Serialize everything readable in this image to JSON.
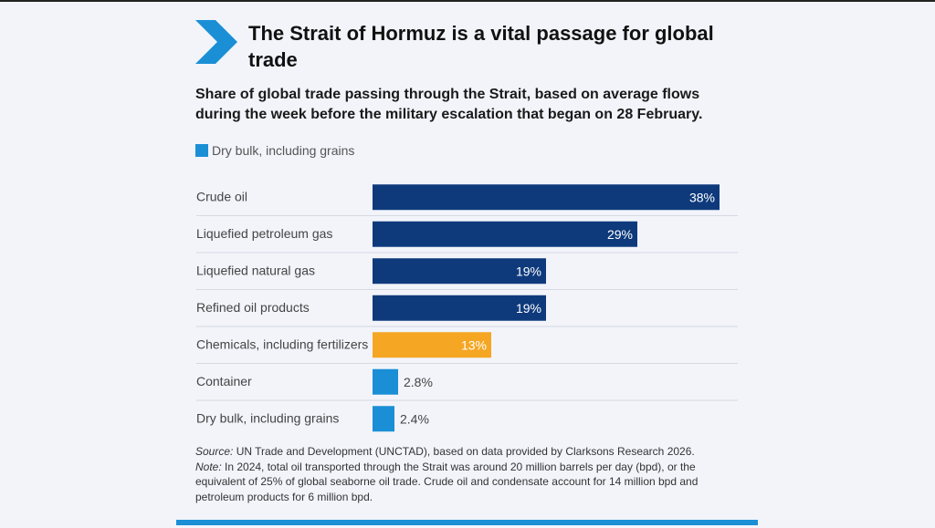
{
  "header": {
    "title": "The Strait of Hormuz is a vital passage for global trade",
    "subtitle": "Share of global trade passing through the Strait, based on average flows during the week before the military escalation that began on 28 February."
  },
  "chart_data": {
    "type": "bar",
    "orientation": "horizontal",
    "title": "The Strait of Hormuz is a vital passage for global trade",
    "legend": [
      {
        "label": "Dry bulk, including grains",
        "color": "#1a8fd6"
      }
    ],
    "legend_position": "top-left",
    "categories": [
      "Crude oil",
      "Liquefied petroleum gas",
      "Liquefied natural gas",
      "Refined oil products",
      "Chemicals, including fertilizers",
      "Container",
      "Dry bulk, including grains"
    ],
    "values": [
      38,
      29,
      19,
      19,
      13,
      2.8,
      2.4
    ],
    "labels": [
      "38%",
      "29%",
      "19%",
      "19%",
      "13%",
      "2.8%",
      "2.4%"
    ],
    "colors": [
      "#0e3a7c",
      "#0e3a7c",
      "#0e3a7c",
      "#0e3a7c",
      "#f5a623",
      "#1a8fd6",
      "#1a8fd6"
    ],
    "unit": "%",
    "xlim": [
      0,
      38
    ],
    "grid": false
  },
  "footer": {
    "source_label": "Source:",
    "source_text": " UN Trade and Development (UNCTAD), based on data provided by Clarksons Research 2026.",
    "note_label": "Note:",
    "note_text": " In 2024, total oil transported through the Strait was around 20 million barrels per day (bpd), or the equivalent of 25% of global seaborne oil trade. Crude oil and condensate account for 14 million bpd and petroleum products for 6 million bpd."
  }
}
